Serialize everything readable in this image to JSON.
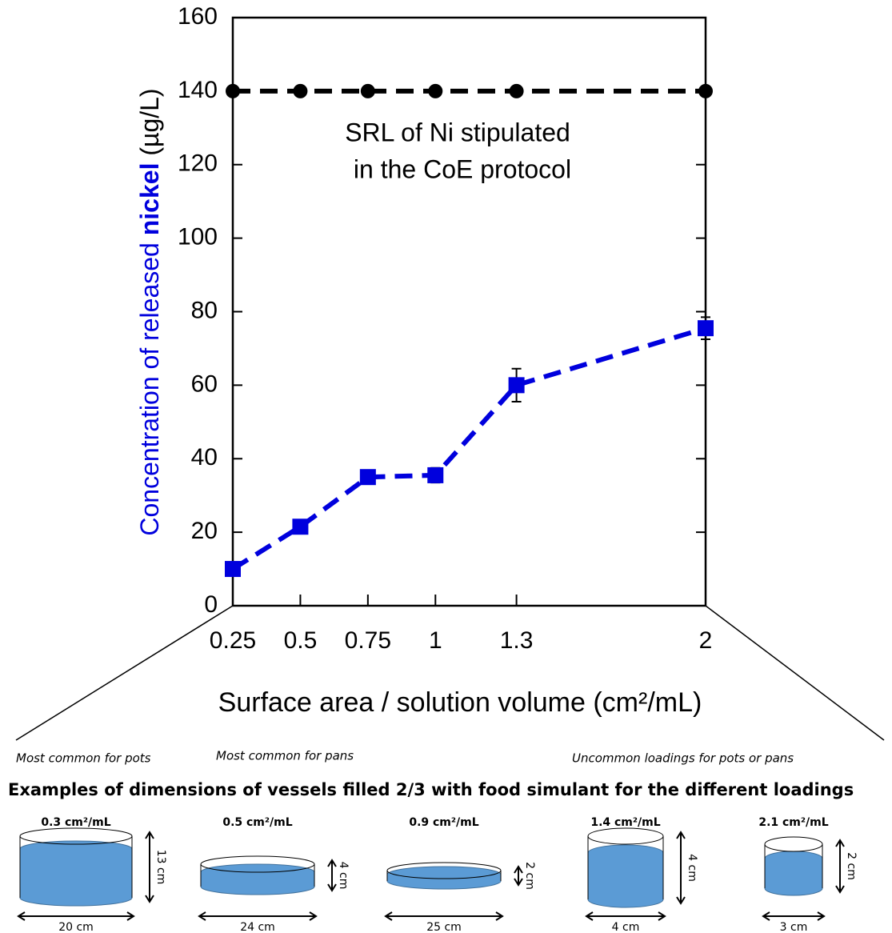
{
  "chart_data": {
    "type": "line",
    "xlabel": "Surface area / solution volume (cm²/mL)",
    "ylabel_parts": [
      "Concentration of released ",
      "nickel",
      " (µg/L)"
    ],
    "annotation_lines": [
      "SRL of Ni stipulated",
      "in the CoE protocol"
    ],
    "xlim": [
      0.25,
      2
    ],
    "xticks": [
      0.25,
      0.5,
      0.75,
      1,
      1.3,
      2
    ],
    "ylim": [
      0,
      160
    ],
    "yticks": [
      0,
      20,
      40,
      60,
      80,
      100,
      120,
      140,
      160
    ],
    "series": [
      {
        "name": "SRL of Ni",
        "color": "#000000",
        "marker": "circle",
        "x": [
          0.25,
          0.5,
          0.75,
          1,
          1.3,
          2
        ],
        "values": [
          140,
          140,
          140,
          140,
          140,
          140
        ]
      },
      {
        "name": "nickel",
        "color": "#0000dd",
        "marker": "square",
        "x": [
          0.25,
          0.5,
          0.75,
          1,
          1.3,
          2
        ],
        "values": [
          10,
          21.5,
          35,
          35.5,
          60,
          75.5
        ],
        "errors": [
          1,
          1,
          1,
          2,
          4.5,
          3
        ]
      }
    ]
  },
  "vessels": {
    "notes": [
      "Most common for pots",
      "Most common for pans",
      "Uncommon loadings for pots or pans"
    ],
    "heading": "Examples of dimensions of vessels filled 2/3 with food simulant for the different loadings",
    "items": [
      {
        "loading": "0.3 cm²/mL",
        "height": "13 cm",
        "width": "20 cm"
      },
      {
        "loading": "0.5 cm²/mL",
        "height": "4 cm",
        "width": "24 cm"
      },
      {
        "loading": "0.9 cm²/mL",
        "height": "2 cm",
        "width": "25 cm"
      },
      {
        "loading": "1.4 cm²/mL",
        "height": "4 cm",
        "width": "4 cm"
      },
      {
        "loading": "2.1 cm²/mL",
        "height": "2 cm",
        "width": "3 cm"
      }
    ]
  }
}
